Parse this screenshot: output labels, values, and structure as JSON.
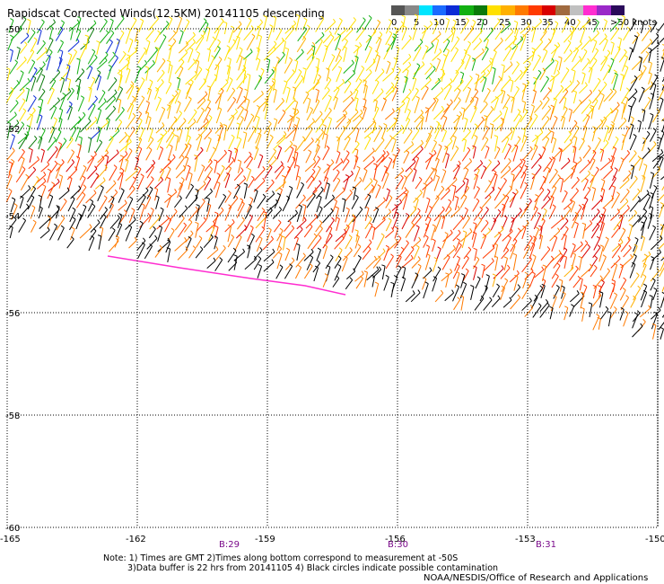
{
  "title": "Rapidscat Corrected Winds(12.5KM) 20141105 descending",
  "legend": {
    "labels": [
      "0",
      "5",
      "10",
      "15",
      "20",
      "25",
      "30",
      "35",
      "40",
      "45",
      ">50 knots"
    ],
    "colors": [
      "#555555",
      "#888888",
      "#00e5ff",
      "#1b6bff",
      "#0b2bd6",
      "#12b012",
      "#0a7a0a",
      "#ffe000",
      "#ffb000",
      "#ff7a00",
      "#ff3a00",
      "#d80000",
      "#a06a40",
      "#c0c0c0",
      "#ff2dd0",
      "#9a28c8",
      "#2a0a5a"
    ]
  },
  "map": {
    "lat_labels": [
      "-50",
      "-52",
      "-54",
      "-56",
      "-58",
      "-60"
    ],
    "lon_labels": [
      "-165",
      "-162",
      "-159",
      "-156",
      "-153",
      "-150"
    ],
    "time_labels": [
      "B:29",
      "B:30",
      "B:31"
    ],
    "gridline_style": "dotted"
  },
  "notes": {
    "line1": "Note: 1) Times are GMT 2)Times along bottom correspond to measurement at -50S",
    "line2": "3)Data buffer is 22 hrs from 20141105 4) Black circles indicate possible contamination"
  },
  "credit": "NOAA/NESDIS/Office of Research and Applications"
}
